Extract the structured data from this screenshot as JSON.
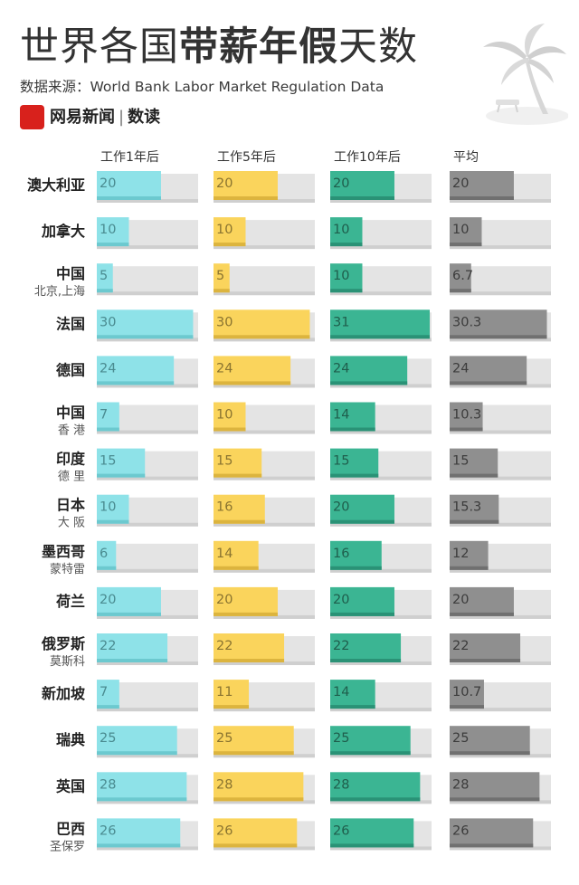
{
  "header": {
    "title_normal": "世界各国",
    "title_bold": "带薪年假",
    "title_end": "天数",
    "subtitle": "数据来源：World Bank Labor Market Regulation Data",
    "brand_name": "网易新闻",
    "brand_section": "数读"
  },
  "chart_data": {
    "type": "bar",
    "columns": [
      "工作1年后",
      "工作5年后",
      "工作10年后",
      "平均"
    ],
    "categories": [
      {
        "name": "澳大利亚",
        "city": ""
      },
      {
        "name": "加拿大",
        "city": ""
      },
      {
        "name": "中国",
        "city": "北京,上海"
      },
      {
        "name": "法国",
        "city": ""
      },
      {
        "name": "德国",
        "city": ""
      },
      {
        "name": "中国",
        "city": "香 港"
      },
      {
        "name": "印度",
        "city": "德 里"
      },
      {
        "name": "日本",
        "city": "大 阪"
      },
      {
        "name": "墨西哥",
        "city": "蒙特雷"
      },
      {
        "name": "荷兰",
        "city": ""
      },
      {
        "name": "俄罗斯",
        "city": "莫斯科"
      },
      {
        "name": "新加坡",
        "city": ""
      },
      {
        "name": "瑞典",
        "city": ""
      },
      {
        "name": "英国",
        "city": ""
      },
      {
        "name": "巴西",
        "city": "圣保罗"
      }
    ],
    "series": [
      {
        "values": [
          20,
          10,
          5,
          30,
          24,
          7,
          15,
          10,
          6,
          20,
          22,
          7,
          25,
          28,
          26
        ],
        "labels": [
          "20",
          "10",
          "5",
          "30",
          "24",
          "7",
          "15",
          "10",
          "6",
          "20",
          "22",
          "7",
          "25",
          "28",
          "26"
        ],
        "color": "#8ee2e8",
        "shade": "#6cc9cf",
        "text_color": "#4a8b90"
      },
      {
        "values": [
          20,
          10,
          5,
          30,
          24,
          10,
          15,
          16,
          14,
          20,
          22,
          11,
          25,
          28,
          26
        ],
        "labels": [
          "20",
          "10",
          "5",
          "30",
          "24",
          "10",
          "15",
          "16",
          "14",
          "20",
          "22",
          "11",
          "25",
          "28",
          "26"
        ],
        "color": "#fad45c",
        "shade": "#dcb43e",
        "text_color": "#8a7430"
      },
      {
        "values": [
          20,
          10,
          10,
          31,
          24,
          14,
          15,
          20,
          16,
          20,
          22,
          14,
          25,
          28,
          26
        ],
        "labels": [
          "20",
          "10",
          "10",
          "31",
          "24",
          "14",
          "15",
          "20",
          "16",
          "20",
          "22",
          "14",
          "25",
          "28",
          "26"
        ],
        "color": "#3bb593",
        "shade": "#2a9276",
        "text_color": "#1f5e4c"
      },
      {
        "values": [
          20,
          10,
          6.7,
          30.3,
          24,
          10.3,
          15,
          15.3,
          12,
          20,
          22,
          10.7,
          25,
          28,
          26
        ],
        "labels": [
          "20",
          "10",
          "6.7",
          "30.3",
          "24",
          "10.3",
          "15",
          "15.3",
          "12",
          "20",
          "22",
          "10.7",
          "25",
          "28",
          "26"
        ],
        "color": "#8f8f8f",
        "shade": "#707070",
        "text_color": "#3c3c3c"
      }
    ],
    "track_color": "#e4e4e4",
    "track_shade": "#cfcfcf",
    "xlim": [
      0,
      31
    ]
  }
}
